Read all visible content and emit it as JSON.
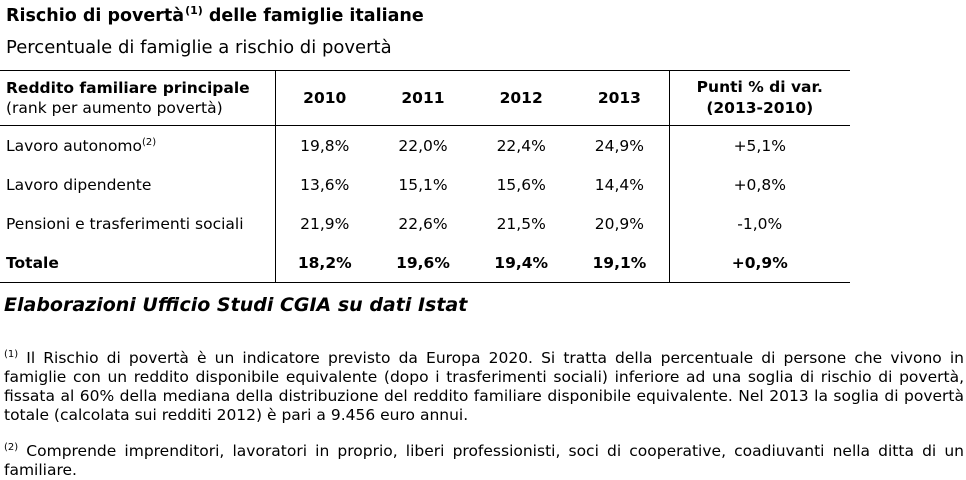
{
  "title": {
    "text": "Rischio di povertà",
    "sup": "(1)",
    "suffix": " delle famiglie italiane"
  },
  "subtitle": "Percentuale di famiglie a rischio di povertà",
  "table": {
    "header": {
      "col1_line1": "Reddito familiare principale",
      "col1_line2": "(rank per aumento povertà)",
      "years": [
        "2010",
        "2011",
        "2012",
        "2013"
      ],
      "last_line1": "Punti % di var.",
      "last_line2": "(2013-2010)"
    },
    "rows": [
      {
        "label": "Lavoro autonomo",
        "sup": "(2)",
        "values": [
          "19,8%",
          "22,0%",
          "22,4%",
          "24,9%"
        ],
        "change": "+5,1%"
      },
      {
        "label": "Lavoro dipendente",
        "sup": "",
        "values": [
          "13,6%",
          "15,1%",
          "15,6%",
          "14,4%"
        ],
        "change": "+0,8%"
      },
      {
        "label": "Pensioni e trasferimenti sociali",
        "sup": "",
        "values": [
          "21,9%",
          "22,6%",
          "21,5%",
          "20,9%"
        ],
        "change": "-1,0%"
      }
    ],
    "total": {
      "label": "Totale",
      "values": [
        "18,2%",
        "19,6%",
        "19,4%",
        "19,1%"
      ],
      "change": "+0,9%"
    }
  },
  "source": "Elaborazioni Ufficio Studi CGIA su dati Istat",
  "notes": [
    {
      "sup": "(1)",
      "text": " Il Rischio di povertà è un indicatore previsto da Europa 2020. Si tratta della percentuale di persone che vivono in famiglie con un reddito disponibile equivalente (dopo i trasferimenti sociali) inferiore ad una soglia di rischio di povertà, fissata al 60% della mediana della distribuzione del reddito familiare disponibile equivalente. Nel 2013 la soglia di povertà totale (calcolata sui redditi 2012) è pari a 9.456 euro annui."
    },
    {
      "sup": "(2)",
      "text": " Comprende imprenditori, lavoratori in proprio, liberi professionisti, soci di cooperative, coadiuvanti nella ditta di un familiare."
    }
  ]
}
